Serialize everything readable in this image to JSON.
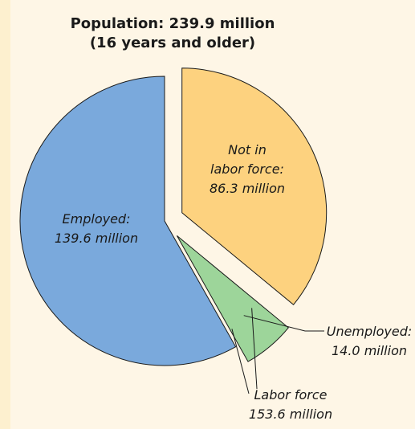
{
  "title_line1": "Population: 239.9 million",
  "title_line2": "(16 years and older)",
  "chart_data": {
    "type": "pie",
    "title": "Population: 239.9 million (16 years and older)",
    "total": 239.9,
    "unit": "million",
    "slices": [
      {
        "name": "Not in labor force",
        "label_lines": [
          "Not in",
          "labor force:",
          "86.3 million"
        ],
        "value": 86.3,
        "color": "#fdd27f",
        "exploded": true
      },
      {
        "name": "Unemployed",
        "label_lines": [
          "Unemployed:",
          "14.0 million"
        ],
        "value": 14.0,
        "color": "#9dd59a",
        "exploded": true
      },
      {
        "name": "Employed",
        "label_lines": [
          "Employed:",
          "139.6 million"
        ],
        "value": 139.6,
        "color": "#7aa9dc",
        "exploded": false
      }
    ],
    "group_annotation": {
      "name": "Labor force",
      "label_lines": [
        "Labor force",
        "153.6 million"
      ],
      "value": 153.6
    }
  }
}
